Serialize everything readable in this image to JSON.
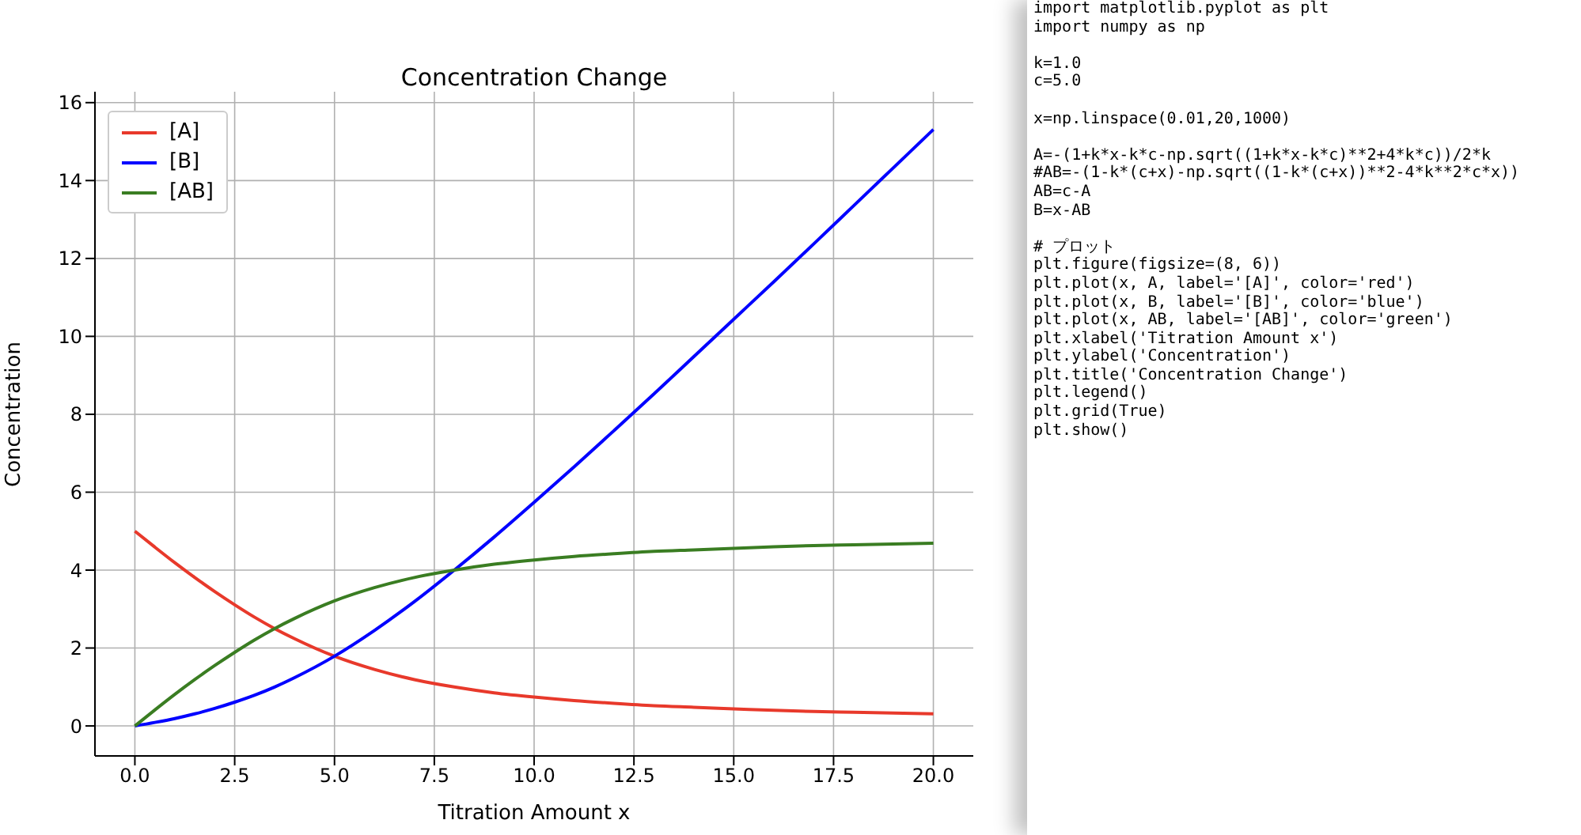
{
  "chart_data": [
    {
      "type": "line",
      "title": "Concentration Change",
      "xlabel": "Titration Amount x",
      "ylabel": "Concentration",
      "x": [
        0,
        0.5,
        1,
        1.5,
        2,
        2.5,
        3,
        3.5,
        4,
        5,
        6,
        7,
        8,
        9,
        10,
        11,
        12,
        13,
        14,
        15,
        16,
        17,
        18,
        19,
        20
      ],
      "series": [
        {
          "name": "[A]",
          "color": "#e8392b",
          "values": [
            5,
            4.59,
            4.19,
            3.81,
            3.45,
            3.11,
            2.79,
            2.5,
            2.24,
            1.79,
            1.45,
            1.19,
            1.0,
            0.85,
            0.74,
            0.65,
            0.58,
            0.52,
            0.48,
            0.44,
            0.4,
            0.37,
            0.35,
            0.33,
            0.31
          ]
        },
        {
          "name": "[B]",
          "color": "#0000ff",
          "values": [
            0,
            0.09,
            0.19,
            0.31,
            0.45,
            0.61,
            0.79,
            1.0,
            1.24,
            1.79,
            2.45,
            3.19,
            4.0,
            4.85,
            5.74,
            6.65,
            7.58,
            8.52,
            9.48,
            10.44,
            11.4,
            12.37,
            13.35,
            14.33,
            15.31
          ]
        },
        {
          "name": "[AB]",
          "color": "#3a7d22",
          "values": [
            0,
            0.41,
            0.81,
            1.19,
            1.55,
            1.89,
            2.21,
            2.5,
            2.76,
            3.21,
            3.55,
            3.81,
            4.0,
            4.15,
            4.26,
            4.35,
            4.42,
            4.48,
            4.52,
            4.56,
            4.6,
            4.63,
            4.65,
            4.67,
            4.69
          ]
        }
      ],
      "xlim": [
        -1,
        21
      ],
      "xticks": [
        {
          "value": 0,
          "label": "0.0"
        },
        {
          "value": 2.5,
          "label": "2.5"
        },
        {
          "value": 5,
          "label": "5.0"
        },
        {
          "value": 7.5,
          "label": "7.5"
        },
        {
          "value": 10,
          "label": "10.0"
        },
        {
          "value": 12.5,
          "label": "12.5"
        },
        {
          "value": 15,
          "label": "15.0"
        },
        {
          "value": 17.5,
          "label": "17.5"
        },
        {
          "value": 20,
          "label": "20.0"
        }
      ],
      "ylim": [
        -0.77,
        16.28
      ],
      "yticks": [
        0,
        2,
        4,
        6,
        8,
        10,
        12,
        14,
        16
      ],
      "grid": true,
      "legend": "top left",
      "marker": "none",
      "line_style": "solid"
    },
    {
      "type": "other",
      "annotations": [
        "import matplotlib.pyplot as plt\nimport numpy as np",
        "k=1.0\nc=5.0",
        "x=np.linspace(0.01,20,1000)",
        "A=-(1+k*x-k*c-np.sqrt((1+k*x-k*c)**2+4*k*c))/2*k\n#AB=-(1-k*(c+x)-np.sqrt((1-k*(c+x))**2-4*k**2*c*x))\nAB=c-A\nB=x-AB",
        "# プロット\nplt.figure(figsize=(8, 6))\nplt.plot(x, A, label='[A]', color='red')\nplt.plot(x, B, label='[B]', color='blue')\nplt.plot(x, AB, label='[AB]', color='green')\nplt.xlabel('Titration Amount x')\nplt.ylabel('Concentration')\nplt.title('Concentration Change')\nplt.legend()\nplt.grid(True)\nplt.show()"
      ]
    }
  ]
}
